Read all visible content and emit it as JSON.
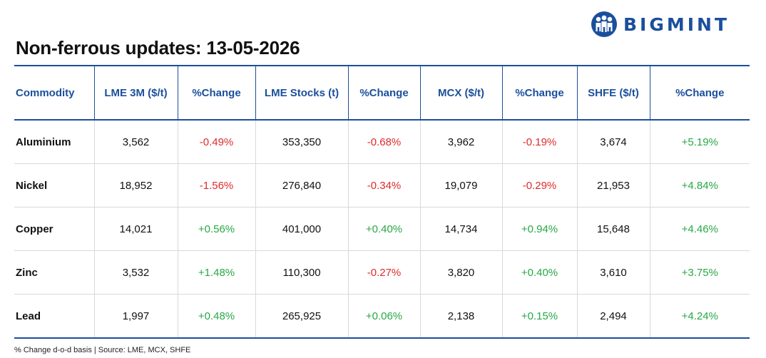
{
  "brand": {
    "name": "BIGMINT",
    "icon": "people-logo-icon",
    "color": "#1b4f9c"
  },
  "title": "Non-ferrous updates: 13-05-2026",
  "table": {
    "headers": [
      "Commodity",
      "LME 3M ($/t)",
      "%Change",
      "LME Stocks (t)",
      "%Change",
      "MCX ($/t)",
      "%Change",
      "SHFE ($/t)",
      "%Change"
    ],
    "rows": [
      [
        "Aluminium",
        "3,562",
        "-0.49%",
        "353,350",
        "-0.68%",
        "3,962",
        "-0.19%",
        "3,674",
        "+5.19%"
      ],
      [
        "Nickel",
        "18,952",
        "-1.56%",
        "276,840",
        "-0.34%",
        "19,079",
        "-0.29%",
        "21,953",
        "+4.84%"
      ],
      [
        "Copper",
        "14,021",
        "+0.56%",
        "401,000",
        "+0.40%",
        "14,734",
        "+0.94%",
        "15,648",
        "+4.46%"
      ],
      [
        "Zinc",
        "3,532",
        "+1.48%",
        "110,300",
        "-0.27%",
        "3,820",
        "+0.40%",
        "3,610",
        "+3.75%"
      ],
      [
        "Lead",
        "1,997",
        "+0.48%",
        "265,925",
        "+0.06%",
        "2,138",
        "+0.15%",
        "2,494",
        "+4.24%"
      ]
    ]
  },
  "colors": {
    "header": "#1b4f9c",
    "negative": "#e02a2a",
    "positive": "#27a844"
  },
  "footnote": "% Change d-o-d basis | Source: LME, MCX, SHFE"
}
